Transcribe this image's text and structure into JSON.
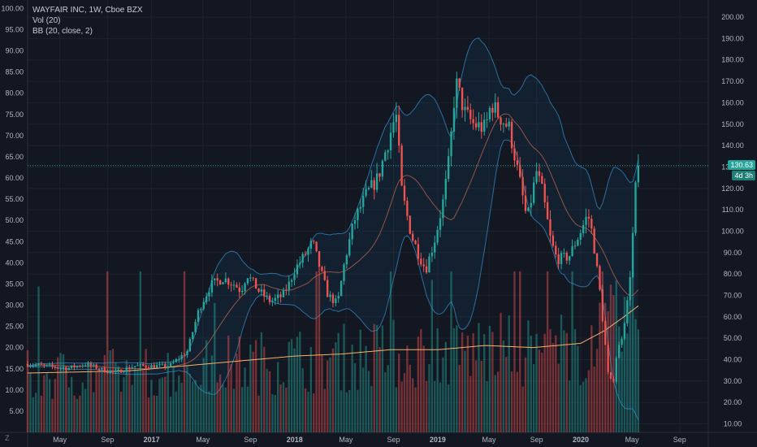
{
  "header": {
    "title": "WAYFAIR INC, 1W, Cboe BZX",
    "vol_label": "Vol (20)",
    "bb_label": "BB (20, close, 2)"
  },
  "badges": {
    "last_price": "130.63",
    "countdown": "4d 3h"
  },
  "corner_label": "Z",
  "colors": {
    "background": "#131722",
    "grid": "#1e222d",
    "up": "#26a69a",
    "down": "#ef5350",
    "bb_band": "#2a6f9e",
    "bb_basis": "#b4624a",
    "vol_ma": "#f7b26b",
    "text": "#b2b5be"
  },
  "chart_data": {
    "type": "candlestick",
    "title": "WAYFAIR INC, 1W, Cboe BZX",
    "interval": "1W",
    "last_price": 130.63,
    "left_axis": {
      "ticks": [
        5,
        10,
        15,
        20,
        25,
        30,
        35,
        40,
        45,
        50,
        55,
        60,
        65,
        70,
        75,
        80,
        85,
        90,
        95,
        100
      ],
      "labels": [
        "5.00",
        "10.00",
        "15.00",
        "20.00",
        "25.00",
        "30.00",
        "35.00",
        "40.00",
        "45.00",
        "50.00",
        "55.00",
        "60.00",
        "65.00",
        "70.00",
        "75.00",
        "80.00",
        "85.00",
        "90.00",
        "95.00",
        "100.00"
      ]
    },
    "right_axis": {
      "ticks": [
        10,
        20,
        30,
        40,
        50,
        60,
        70,
        80,
        90,
        100,
        110,
        120,
        130,
        140,
        150,
        160,
        170,
        180,
        190,
        200
      ],
      "labels": [
        "10.00",
        "20.00",
        "30.00",
        "40.00",
        "50.00",
        "60.00",
        "70.00",
        "80.00",
        "90.00",
        "100.00",
        "110.00",
        "120.00",
        "130.00",
        "140.00",
        "150.00",
        "160.00",
        "170.00",
        "180.00",
        "190.00",
        "200.00"
      ],
      "range": [
        6,
        208
      ]
    },
    "x_axis": {
      "labels": [
        "May",
        "Sep",
        "2017",
        "May",
        "Sep",
        "2018",
        "May",
        "Sep",
        "2019",
        "May",
        "Sep",
        "2020",
        "May",
        "Sep"
      ],
      "bold": [
        "2017",
        "2018",
        "2019",
        "2020"
      ],
      "t": [
        4.3,
        8.3,
        12,
        16.3,
        20.3,
        24,
        28.3,
        32.3,
        36,
        40.3,
        44.3,
        48,
        52.3,
        56.3
      ],
      "range": [
        1.6,
        58.7
      ]
    },
    "close_anchors": [
      [
        1.6,
        38
      ],
      [
        3,
        37
      ],
      [
        5,
        36
      ],
      [
        6.5,
        38
      ],
      [
        8,
        35
      ],
      [
        9,
        34
      ],
      [
        10.5,
        37
      ],
      [
        12,
        37
      ],
      [
        13.5,
        37
      ],
      [
        15,
        44
      ],
      [
        16,
        64
      ],
      [
        17,
        75
      ],
      [
        18,
        78
      ],
      [
        19,
        75
      ],
      [
        19.5,
        72
      ],
      [
        20,
        80
      ],
      [
        21,
        72
      ],
      [
        22,
        67
      ],
      [
        23,
        70
      ],
      [
        23.5,
        75
      ],
      [
        24,
        82
      ],
      [
        25,
        90
      ],
      [
        25.5,
        95
      ],
      [
        26,
        85
      ],
      [
        26.8,
        70
      ],
      [
        27.6,
        66
      ],
      [
        28.2,
        86
      ],
      [
        29,
        105
      ],
      [
        30,
        117
      ],
      [
        31,
        125
      ],
      [
        32,
        145
      ],
      [
        32.5,
        155
      ],
      [
        33,
        118
      ],
      [
        33.8,
        98
      ],
      [
        34.5,
        88
      ],
      [
        35,
        82
      ],
      [
        35.8,
        97
      ],
      [
        36.5,
        115
      ],
      [
        37,
        135
      ],
      [
        37.5,
        170
      ],
      [
        38.3,
        155
      ],
      [
        39,
        150
      ],
      [
        40,
        148
      ],
      [
        40.5,
        160
      ],
      [
        41,
        155
      ],
      [
        42,
        148
      ],
      [
        43,
        120
      ],
      [
        43.5,
        105
      ],
      [
        44.3,
        128
      ],
      [
        44.8,
        118
      ],
      [
        45.5,
        95
      ],
      [
        46,
        87
      ],
      [
        47,
        88
      ],
      [
        48,
        100
      ],
      [
        48.6,
        108
      ],
      [
        49,
        98
      ],
      [
        49.3,
        85
      ],
      [
        49.6,
        72
      ],
      [
        50,
        50
      ],
      [
        50.3,
        33
      ],
      [
        50.7,
        28
      ],
      [
        51,
        42
      ],
      [
        51.5,
        52
      ],
      [
        52,
        70
      ],
      [
        52.3,
        92
      ],
      [
        52.6,
        120
      ],
      [
        52.9,
        130.63
      ]
    ],
    "vol_ma_anchors": [
      [
        1.6,
        14
      ],
      [
        10,
        14.5
      ],
      [
        16,
        16
      ],
      [
        20,
        17
      ],
      [
        24,
        18
      ],
      [
        28,
        18.5
      ],
      [
        32,
        19.5
      ],
      [
        36,
        19.5
      ],
      [
        40,
        20.5
      ],
      [
        44,
        20
      ],
      [
        48,
        21
      ],
      [
        50,
        24
      ],
      [
        51.5,
        27
      ],
      [
        52.9,
        30
      ]
    ],
    "series": [
      {
        "name": "Vol (20)"
      },
      {
        "name": "BB (20, close, 2)"
      }
    ]
  }
}
